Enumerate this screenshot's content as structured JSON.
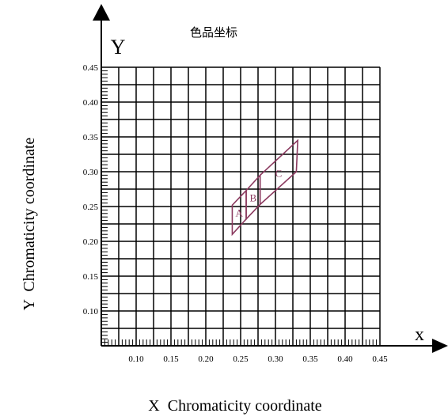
{
  "chart_data": {
    "type": "scatter",
    "title": "色品坐标",
    "xlabel": "X  Chromaticity coordinate",
    "ylabel": "Y  Chromaticity coordinate",
    "x_axis_letter": "x",
    "y_axis_letter": "Y",
    "xlim": [
      0.05,
      0.45
    ],
    "ylim": [
      0.05,
      0.45
    ],
    "grid": true,
    "x_ticks": [
      0.1,
      0.15,
      0.2,
      0.25,
      0.3,
      0.35,
      0.4,
      0.45
    ],
    "y_ticks": [
      0.1,
      0.15,
      0.2,
      0.25,
      0.3,
      0.35,
      0.4,
      0.45
    ],
    "x_tick_labels": [
      "0.10",
      "0.15",
      "0.20",
      "0.25",
      "0.30",
      "0.35",
      "0.40",
      "0.45"
    ],
    "y_tick_labels": [
      "0.10",
      "0.15",
      "0.20",
      "0.25",
      "0.30",
      "0.35",
      "0.40",
      "0.45"
    ],
    "regions": [
      {
        "name": "A",
        "points": [
          [
            0.238,
            0.252
          ],
          [
            0.258,
            0.273
          ],
          [
            0.258,
            0.232
          ],
          [
            0.238,
            0.21
          ]
        ]
      },
      {
        "name": "B",
        "points": [
          [
            0.258,
            0.273
          ],
          [
            0.278,
            0.295
          ],
          [
            0.278,
            0.253
          ],
          [
            0.258,
            0.232
          ]
        ]
      },
      {
        "name": "C",
        "points": [
          [
            0.278,
            0.295
          ],
          [
            0.332,
            0.345
          ],
          [
            0.33,
            0.3
          ],
          [
            0.278,
            0.253
          ]
        ]
      }
    ],
    "colors": {
      "region": "#8b3a5f",
      "grid": "#000000",
      "axis": "#000000"
    }
  }
}
